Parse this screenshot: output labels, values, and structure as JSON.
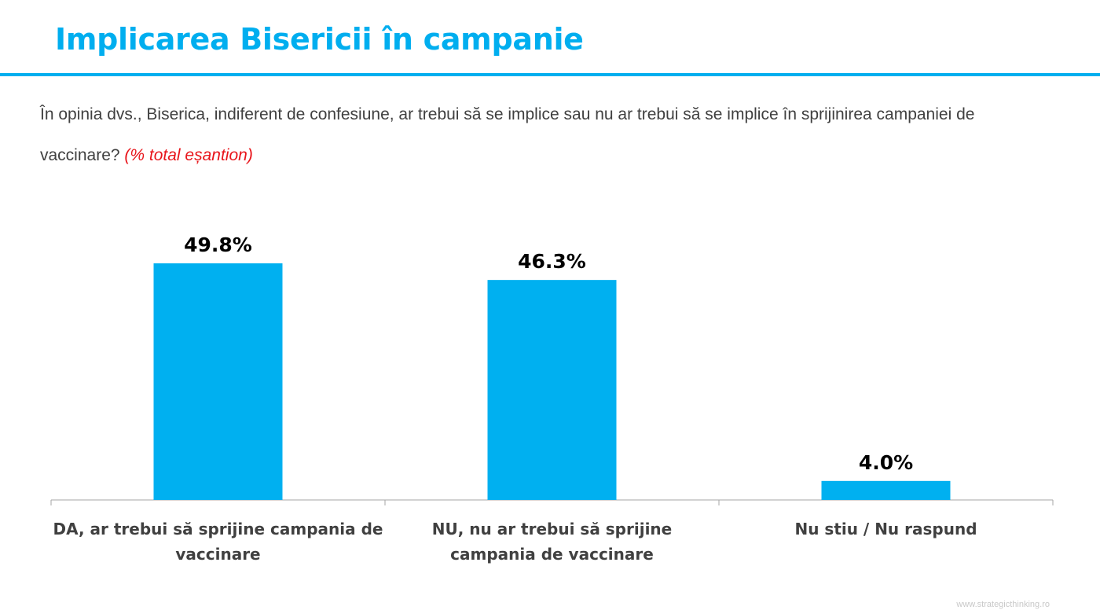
{
  "title": "Implicarea Bisericii în campanie",
  "question": {
    "text": "În opinia dvs., Biserica, indiferent de confesiune, ar trebui să se implice sau nu ar trebui să se implice în sprijinirea campaniei de vaccinare?",
    "note": "(% total eșantion)"
  },
  "colors": {
    "accent": "#00aeef",
    "bar": "#00b0f0",
    "note": "#e8151b",
    "text": "#404040",
    "axis": "#a6a6a6"
  },
  "chart_data": {
    "type": "bar",
    "categories": [
      "DA, ar trebui să sprijine campania de vaccinare",
      "NU, nu ar trebui să sprijine campania de vaccinare",
      "Nu stiu / Nu raspund"
    ],
    "values": [
      49.8,
      46.3,
      4.0
    ],
    "data_labels": [
      "49.8%",
      "46.3%",
      "4.0%"
    ],
    "category_label_lines": [
      [
        "DA, ar trebui să sprijine campania de",
        "vaccinare"
      ],
      [
        "NU, nu ar trebui să sprijine",
        "campania de vaccinare"
      ],
      [
        "Nu stiu / Nu raspund"
      ]
    ],
    "ylim": [
      0,
      60
    ],
    "grid": false,
    "legend": "none"
  },
  "footer": "www.strategicthinking.ro"
}
